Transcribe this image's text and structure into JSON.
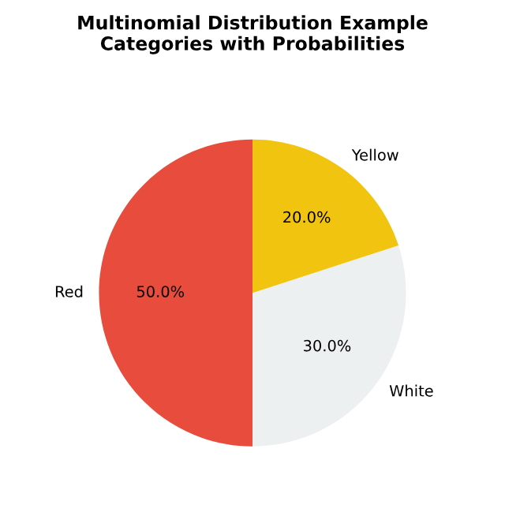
{
  "chart_data": {
    "type": "pie",
    "title": "Multinomial Distribution Example\nCategories with Probabilities",
    "categories": [
      "Red",
      "White",
      "Yellow"
    ],
    "values": [
      50,
      30,
      20
    ],
    "value_labels": [
      "50.0%",
      "30.0%",
      "20.0%"
    ],
    "colors": [
      "#e74c3c",
      "#ecf0f1",
      "#f1c40f"
    ],
    "legend": false
  }
}
